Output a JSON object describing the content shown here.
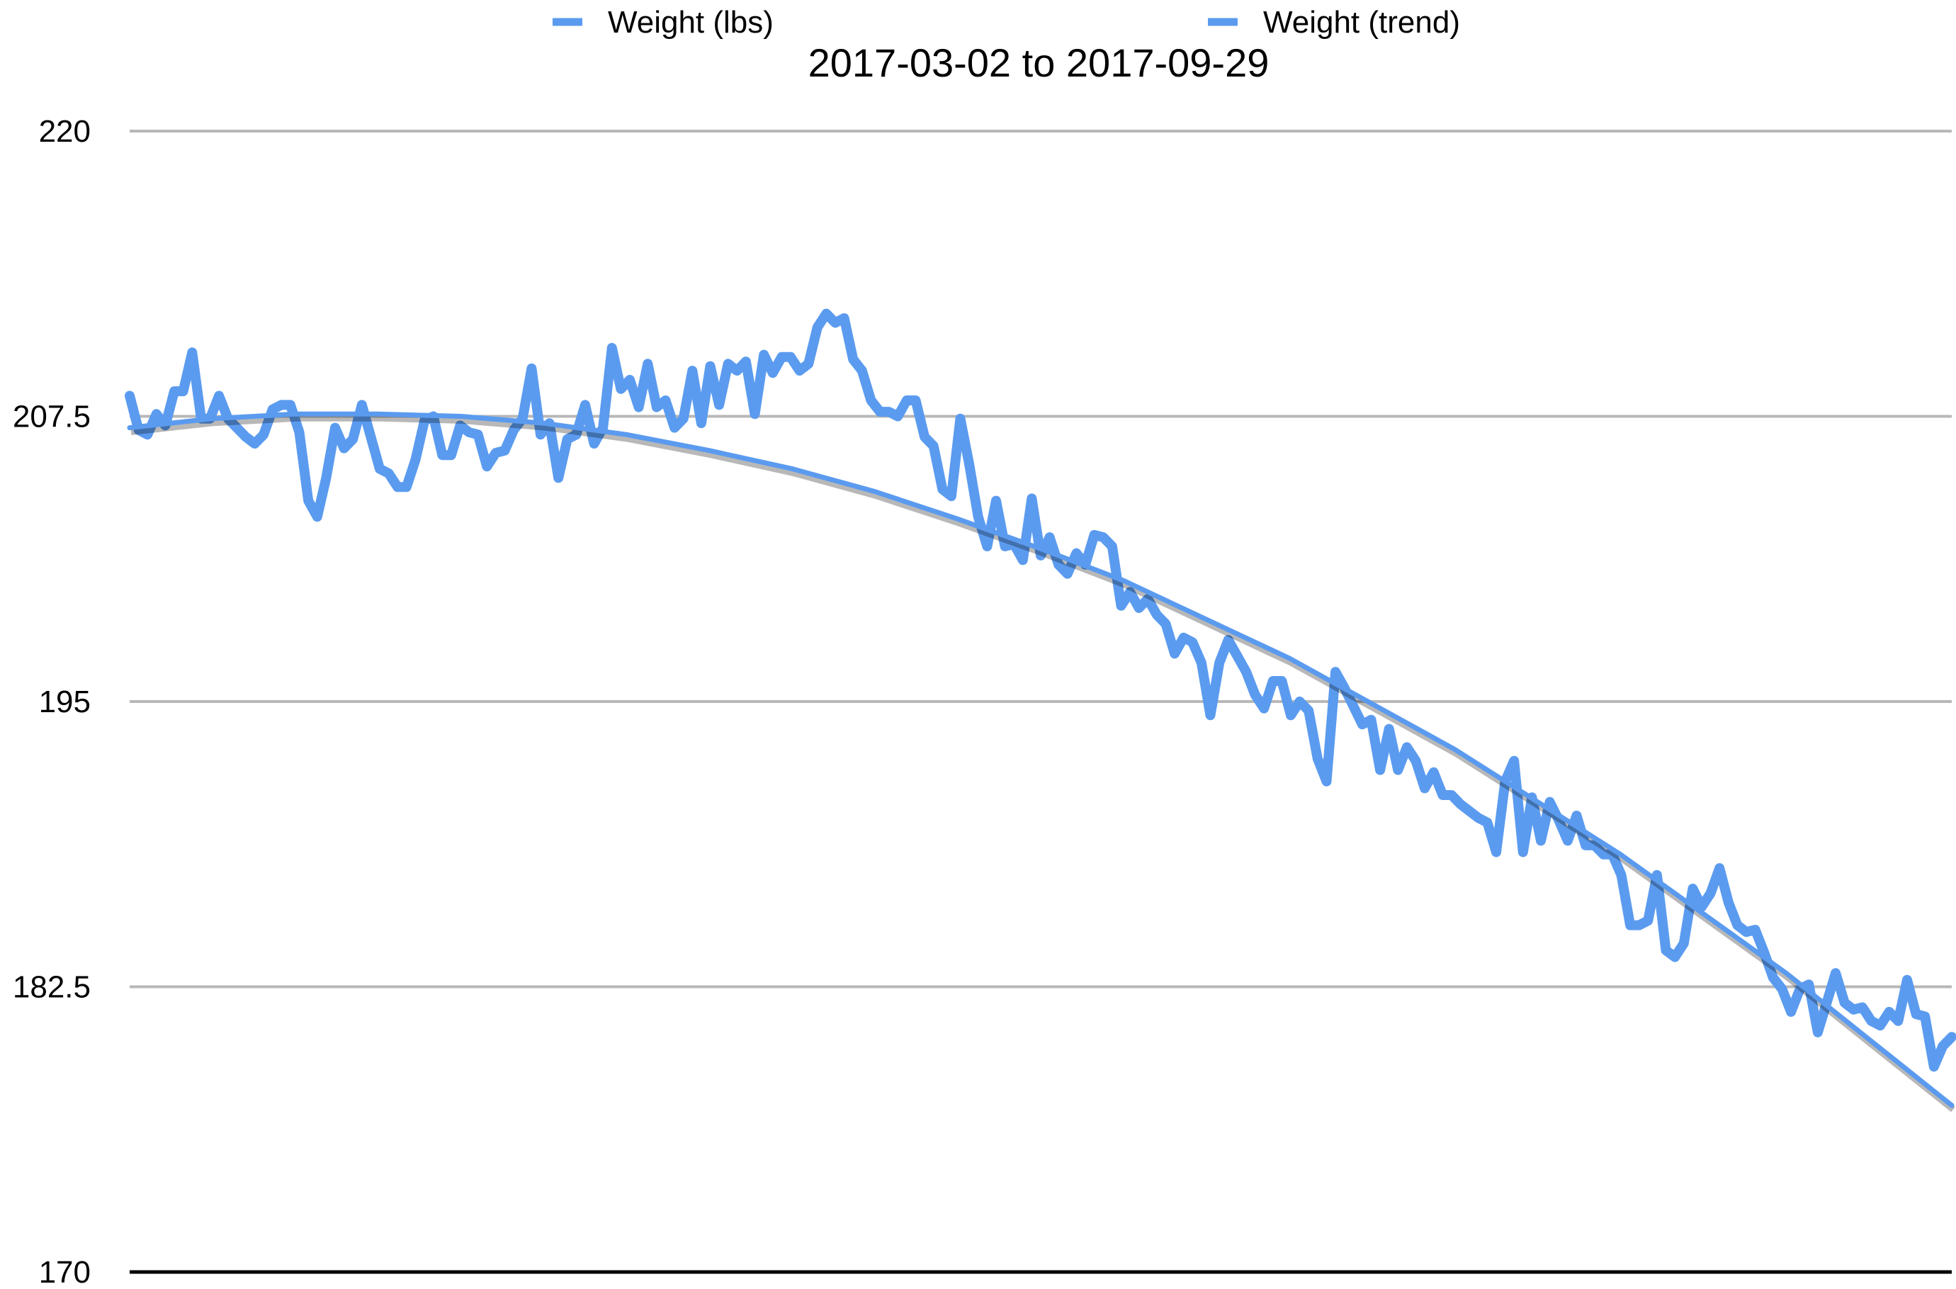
{
  "chart_data": {
    "type": "line",
    "title": "2017-03-02 to 2017-09-29",
    "xlabel": "",
    "ylabel": "",
    "ylim": [
      170,
      220
    ],
    "yticks": [
      "170",
      "182.5",
      "195",
      "207.5",
      "220"
    ],
    "grid": true,
    "legend_position": "top",
    "x_start": "2017-03-02",
    "x_end": "2017-09-29",
    "series": [
      {
        "name": "Weight (lbs)",
        "color": "#5b9bef",
        "values": [
          208.4,
          206.9,
          206.7,
          207.6,
          207.1,
          208.6,
          208.6,
          210.3,
          207.4,
          207.4,
          208.4,
          207.4,
          207,
          206.6,
          206.3,
          206.7,
          207.8,
          208,
          208,
          206.8,
          203.8,
          203.1,
          204.8,
          207,
          206.1,
          206.5,
          208,
          206.6,
          205.2,
          205,
          204.4,
          204.4,
          205.6,
          207.3,
          207.5,
          205.8,
          205.8,
          207.1,
          206.8,
          206.7,
          205.3,
          205.9,
          206,
          206.9,
          207.4,
          209.6,
          206.7,
          207.2,
          204.8,
          206.5,
          206.7,
          208,
          206.3,
          207,
          210.5,
          208.7,
          209.1,
          207.9,
          209.8,
          207.9,
          208.2,
          207,
          207.4,
          209.5,
          207.2,
          209.7,
          208,
          209.8,
          209.5,
          209.9,
          207.6,
          210.2,
          209.4,
          210.1,
          210.1,
          209.5,
          209.8,
          211.4,
          212,
          211.6,
          211.8,
          210,
          209.5,
          208.2,
          207.7,
          207.7,
          207.5,
          208.2,
          208.2,
          206.6,
          206.2,
          204.3,
          204,
          207.4,
          205.4,
          203.1,
          201.8,
          203.8,
          201.8,
          201.9,
          201.2,
          203.9,
          201.4,
          202.2,
          201,
          200.6,
          201.5,
          201,
          202.3,
          202.2,
          201.8,
          199.2,
          199.8,
          199.1,
          199.5,
          198.8,
          198.4,
          197.1,
          197.8,
          197.6,
          196.7,
          194.4,
          196.7,
          197.7,
          197,
          196.3,
          195.3,
          194.7,
          195.9,
          195.9,
          194.4,
          195,
          194.6,
          192.5,
          191.5,
          196.3,
          195.6,
          194.8,
          194,
          194.2,
          192,
          193.8,
          192,
          193,
          192.4,
          191.2,
          191.9,
          190.9,
          190.9,
          190.5,
          190.2,
          189.9,
          189.7,
          188.4,
          191.5,
          192.4,
          188.4,
          190.8,
          188.9,
          190.6,
          189.8,
          188.9,
          190,
          188.7,
          188.7,
          188.3,
          188.3,
          187.4,
          185.2,
          185.2,
          185.4,
          187.4,
          184.1,
          183.8,
          184.4,
          186.8,
          186,
          186.6,
          187.7,
          186.2,
          185.2,
          184.9,
          185,
          184,
          182.9,
          182.4,
          181.4,
          182.4,
          182.6,
          180.5,
          181.8,
          183.1,
          181.8,
          181.5,
          181.6,
          181,
          180.8,
          181.4,
          181,
          182.8,
          181.3,
          181.2,
          179,
          179.9,
          180.3
        ]
      },
      {
        "name": "Weight (trend)",
        "color": "#5b9bef",
        "values": [
          207,
          207.4,
          207.6,
          207.6,
          207.5,
          207.2,
          206.7,
          206,
          205.2,
          204.2,
          203,
          201.7,
          200.3,
          198.6,
          196.9,
          194.9,
          192.9,
          190.6,
          188.3,
          185.7,
          183.1,
          180.2,
          177.3
        ]
      }
    ]
  }
}
